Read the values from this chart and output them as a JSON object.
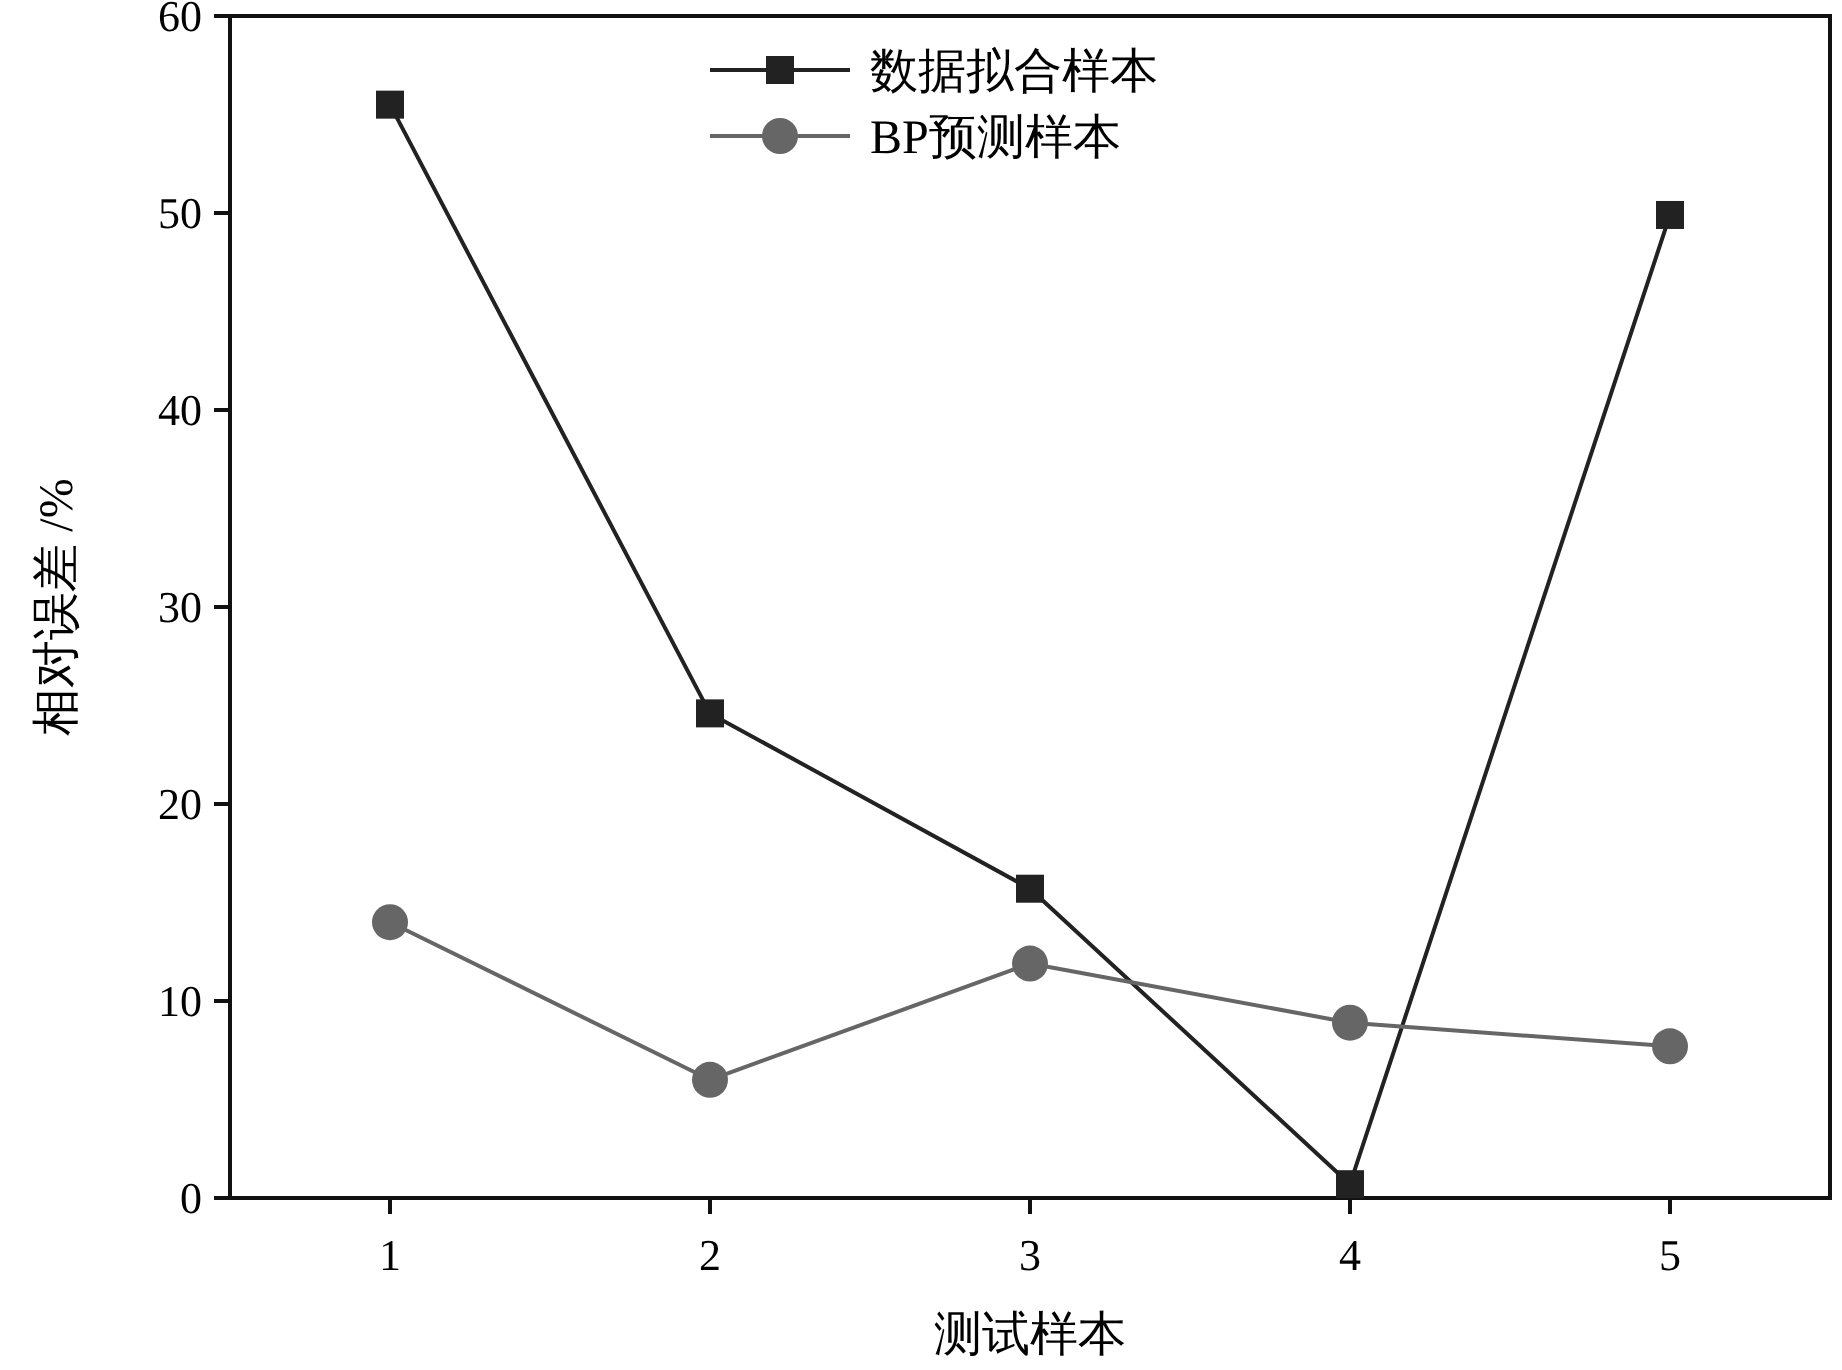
{
  "chart_data": {
    "type": "line",
    "xlabel": "测试样本",
    "ylabel": "相对误差 /%",
    "x": [
      1,
      2,
      3,
      4,
      5
    ],
    "xlim": [
      0.5,
      5.5
    ],
    "xticks": [
      1,
      2,
      3,
      4,
      5
    ],
    "ylim": [
      0,
      60
    ],
    "yticks": [
      0,
      10,
      20,
      30,
      40,
      50,
      60
    ],
    "legend": "top",
    "grid": false,
    "series": [
      {
        "name": "数据拟合样本",
        "color": "#222222",
        "marker": "square",
        "values": [
          55.5,
          24.6,
          15.7,
          0.7,
          49.9
        ]
      },
      {
        "name": "BP预测样本",
        "color": "#666666",
        "marker": "circle",
        "values": [
          14.0,
          6.0,
          11.9,
          8.9,
          7.7
        ]
      }
    ]
  }
}
